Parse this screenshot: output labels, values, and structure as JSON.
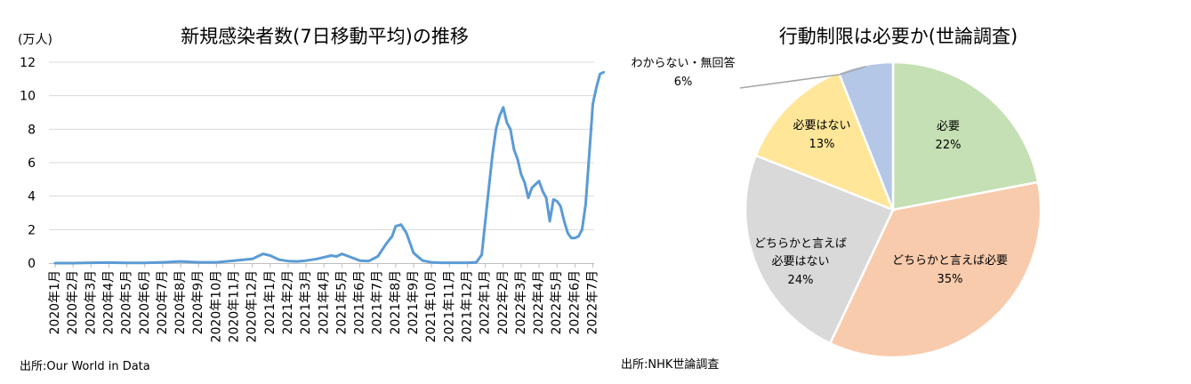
{
  "chart_data": [
    {
      "type": "line",
      "title": "新規感染者数(7日移動平均)の推移",
      "ylabel": "(万人)",
      "ylim": [
        0,
        12
      ],
      "yticks": [
        "0",
        "2",
        "4",
        "6",
        "8",
        "10",
        "12"
      ],
      "grid": true,
      "categories": [
        "2020年1月",
        "2020年2月",
        "2020年3月",
        "2020年4月",
        "2020年5月",
        "2020年6月",
        "2020年7月",
        "2020年8月",
        "2020年9月",
        "2020年10月",
        "2020年11月",
        "2020年12月",
        "2021年1月",
        "2021年2月",
        "2021年3月",
        "2021年4月",
        "2021年5月",
        "2021年6月",
        "2021年7月",
        "2021年8月",
        "2021年9月",
        "2021年10月",
        "2021年11月",
        "2021年12月",
        "2022年1月",
        "2022年2月",
        "2022年3月",
        "2022年4月",
        "2022年5月",
        "2022年6月",
        "2022年7月"
      ],
      "x": [
        0,
        1,
        2,
        3,
        4,
        5,
        6,
        7,
        8,
        9,
        10,
        11,
        11.6,
        12,
        12.5,
        13,
        13.5,
        14,
        14.6,
        15,
        15.4,
        15.7,
        16,
        16.5,
        17,
        17.5,
        18,
        18.5,
        18.8,
        19,
        19.3,
        19.6,
        20,
        20.5,
        21,
        21.5,
        22,
        22.5,
        23,
        23.5,
        23.8,
        24,
        24.2,
        24.4,
        24.6,
        24.8,
        25,
        25.2,
        25.4,
        25.6,
        25.8,
        26,
        26.2,
        26.4,
        26.6,
        26.8,
        27,
        27.2,
        27.4,
        27.6,
        27.8,
        28,
        28.2,
        28.4,
        28.6,
        28.8,
        29,
        29.2,
        29.4,
        29.6,
        29.8,
        30,
        30.2,
        30.4,
        30.6
      ],
      "series": [
        {
          "values": [
            0,
            0,
            0.02,
            0.03,
            0.01,
            0.01,
            0.05,
            0.1,
            0.05,
            0.05,
            0.15,
            0.25,
            0.55,
            0.45,
            0.2,
            0.12,
            0.1,
            0.15,
            0.25,
            0.35,
            0.45,
            0.4,
            0.55,
            0.35,
            0.15,
            0.12,
            0.4,
            1.2,
            1.6,
            2.2,
            2.3,
            1.8,
            0.6,
            0.15,
            0.05,
            0.02,
            0.02,
            0.02,
            0.02,
            0.05,
            0.5,
            2.5,
            4.5,
            6.5,
            8.0,
            8.8,
            9.3,
            8.4,
            8.0,
            6.8,
            6.2,
            5.3,
            4.8,
            3.9,
            4.5,
            4.7,
            4.9,
            4.3,
            3.9,
            2.5,
            3.8,
            3.7,
            3.4,
            2.5,
            1.8,
            1.5,
            1.5,
            1.6,
            2.0,
            3.5,
            6.5,
            9.5,
            10.5,
            11.3,
            11.4
          ]
        }
      ],
      "source": "出所:Our World in Data"
    },
    {
      "type": "pie",
      "title": "行動制限は必要か(世論調査)",
      "slices": [
        {
          "label": "必要",
          "value": 22,
          "pct": "22%",
          "color": "#c5e0b4"
        },
        {
          "label": "どちらかと言えば必要",
          "value": 35,
          "pct": "35%",
          "color": "#f8cbad"
        },
        {
          "label": "どちらかと言えば必要はない",
          "label_lines": [
            "どちらかと言えば",
            "必要はない"
          ],
          "value": 24,
          "pct": "24%",
          "color": "#d9d9d9"
        },
        {
          "label": "必要はない",
          "value": 13,
          "pct": "13%",
          "color": "#ffe699"
        },
        {
          "label": "わからない・無回答",
          "value": 6,
          "pct": "6%",
          "color": "#b4c7e7"
        }
      ],
      "source": "出所:NHK世論調査"
    }
  ]
}
